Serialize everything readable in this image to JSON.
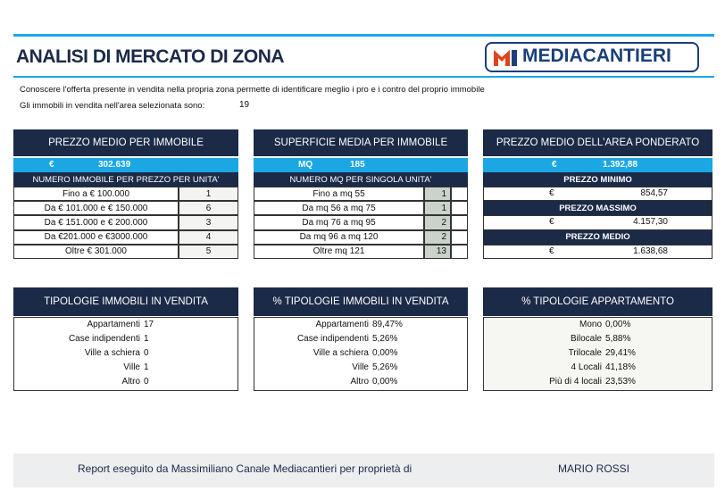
{
  "header": {
    "title": "ANALISI DI MERCATO DI ZONA",
    "logo": "MEDIACANTIERI",
    "intro": "Conoscere l'offerta presente in vendita nella propria zona permette di identificare meglio i pro e i contro del proprio immobile",
    "count_label": "Gli immobili in vendita nell'area selezionata sono:",
    "count": 19
  },
  "top_panels": [
    {
      "title": "PREZZO MEDIO PER IMMOBILE",
      "unit": "€",
      "value": "302.639",
      "subtitle": "NUMERO IMMOBILE PER PREZZO PER UNITA'",
      "rows": [
        {
          "label": "Fino a € 100.000",
          "value": 1
        },
        {
          "label": "Da € 101.000 e € 150.000",
          "value": 6
        },
        {
          "label": "Da € 151.000 e € 200.000",
          "value": 3
        },
        {
          "label": "Da €201.000 e €3000.000",
          "value": 4
        },
        {
          "label": "Oltre € 301.000",
          "value": 5
        }
      ]
    },
    {
      "title": "SUPERFICIE MEDIA PER IMMOBILE",
      "unit": "MQ",
      "value": 185,
      "subtitle": "NUMERO MQ PER SINGOLA UNITA'",
      "rows": [
        {
          "label": "Fino a mq 55",
          "value": 1
        },
        {
          "label": "Da mq 56 a mq 75",
          "value": 1
        },
        {
          "label": "Da mq 76 a mq 95",
          "value": 2
        },
        {
          "label": "Da mq 96 a mq 120",
          "value": 2
        },
        {
          "label": "Oltre mq 121",
          "value": 13
        }
      ]
    }
  ],
  "price_panel": {
    "title": "PREZZO MEDIO DELL'AREA PONDERATO",
    "unit": "€",
    "value": "1.392,88",
    "blocks": [
      {
        "title": "PREZZO MINIMO",
        "unit": "€",
        "value": "854,57"
      },
      {
        "title": "PREZZO MASSIMO",
        "unit": "€",
        "value": "4.157,30"
      },
      {
        "title": "PREZZO MEDIO",
        "unit": "€",
        "value": "1.638,68"
      }
    ]
  },
  "bottom_panels": [
    {
      "title": "TIPOLOGIE IMMOBILI  IN VENDITA",
      "rows": [
        {
          "label": "Appartamenti",
          "value": 17
        },
        {
          "label": "Case indipendenti",
          "value": 1
        },
        {
          "label": "Ville a schiera",
          "value": 0
        },
        {
          "label": "Ville",
          "value": 1
        },
        {
          "label": "Altro",
          "value": 0
        }
      ]
    },
    {
      "title": "%  TIPOLOGIE IMMOBILI IN VENDITA",
      "rows": [
        {
          "label": "Appartamenti",
          "value": "89,47%"
        },
        {
          "label": "Case indipendenti",
          "value": "5,26%"
        },
        {
          "label": "Ville a schiera",
          "value": "0,00%"
        },
        {
          "label": "Ville",
          "value": "5,26%"
        },
        {
          "label": "Altro",
          "value": "0,00%"
        }
      ]
    },
    {
      "title": "% TIPOLOGIE APPARTAMENTO",
      "rows": [
        {
          "label": "Mono",
          "value": "0,00%"
        },
        {
          "label": "Bilocale",
          "value": "5,88%"
        },
        {
          "label": "Trilocale",
          "value": "29,41%"
        },
        {
          "label": "4 Locali",
          "value": "41,18%"
        },
        {
          "label": "Più di 4 locali",
          "value": "23,53%"
        }
      ]
    }
  ],
  "footer": {
    "text": "Report eseguito da Massimiliano Canale Mediacantieri per proprietà di",
    "owner": "MARIO ROSSI"
  }
}
